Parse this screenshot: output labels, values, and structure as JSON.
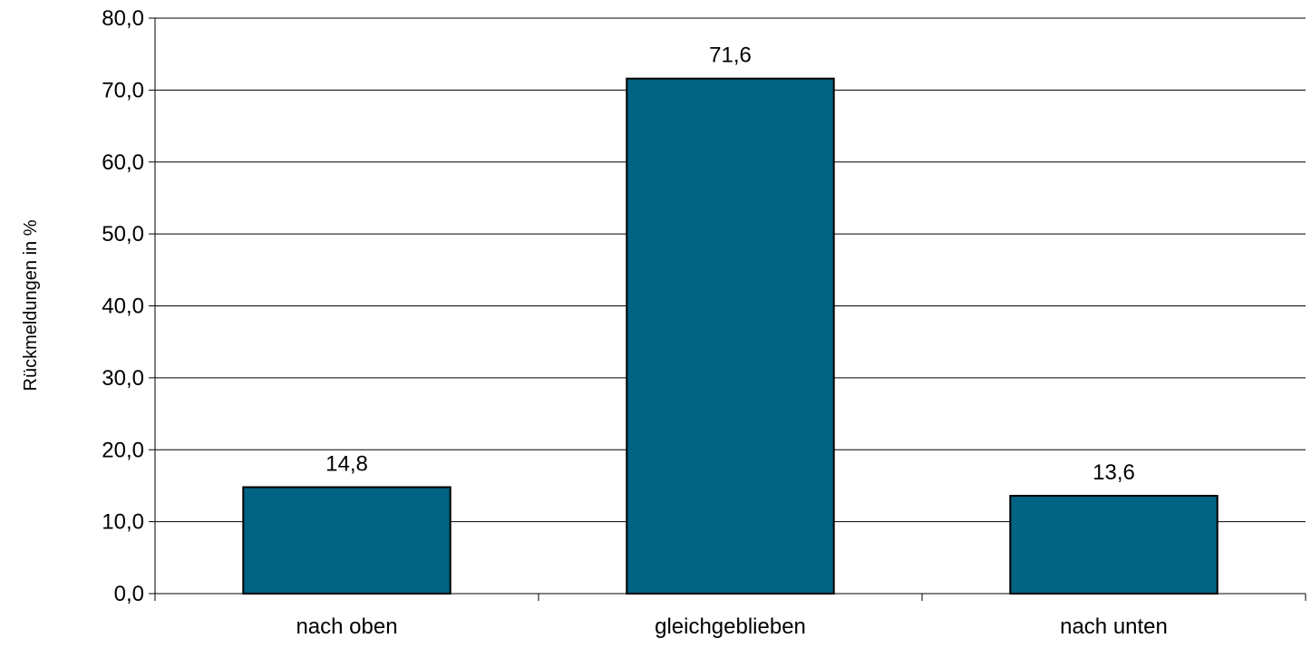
{
  "chart_data": {
    "type": "bar",
    "title": "",
    "xlabel": "",
    "ylabel": "Rückmeldungen in %",
    "categories": [
      "nach oben",
      "gleichgeblieben",
      "nach unten"
    ],
    "values": [
      14.8,
      71.6,
      13.6
    ],
    "value_labels": [
      "14,8",
      "71,6",
      "13,6"
    ],
    "ylim": [
      0,
      80
    ],
    "yticks": [
      0,
      10,
      20,
      30,
      40,
      50,
      60,
      70,
      80
    ],
    "ytick_labels": [
      "0,0",
      "10,0",
      "20,0",
      "30,0",
      "40,0",
      "50,0",
      "60,0",
      "70,0",
      "80,0"
    ],
    "grid": true,
    "legend": "none",
    "bar_color": "#006482"
  }
}
